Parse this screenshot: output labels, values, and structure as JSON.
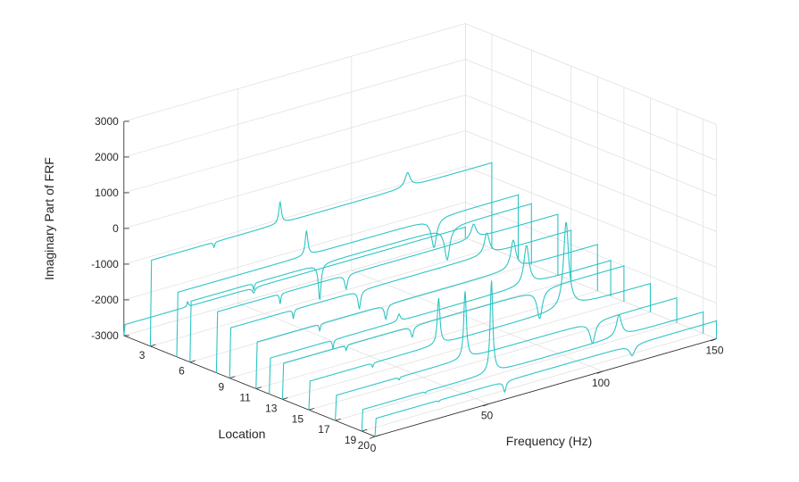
{
  "chart_data": {
    "type": "waterfall-3d-line",
    "title": "",
    "xlabel": "Frequency (Hz)",
    "ylabel": "Location",
    "zlabel": "Imaginary Part of FRF",
    "x_ticks": [
      "0",
      "50",
      "100",
      "150"
    ],
    "y_ticks": [
      "3",
      "6",
      "9",
      "11",
      "13",
      "15",
      "17",
      "19",
      "20"
    ],
    "z_ticks": [
      "3000",
      "2000",
      "1000",
      "0",
      "-1000",
      "-2000",
      "-3000"
    ],
    "xlim": [
      0,
      150
    ],
    "ylim": [
      1,
      20
    ],
    "zlim": [
      -3000,
      3000
    ],
    "grid": true,
    "line_color": "#2ec4c4",
    "peak_color": "#f2e33a",
    "modes_hz": [
      28,
      57,
      113
    ],
    "series": [
      {
        "location": 1,
        "baseline": -2700,
        "amplitudes": [
          150,
          -150,
          0
        ]
      },
      {
        "location": 3,
        "baseline": -600,
        "amplitudes": [
          -150,
          600,
          400
        ]
      },
      {
        "location": 5,
        "baseline": -1200,
        "amplitudes": [
          0,
          700,
          -800
        ]
      },
      {
        "location": 6,
        "baseline": -1300,
        "amplitudes": [
          -200,
          -1000,
          -900
        ]
      },
      {
        "location": 8,
        "baseline": -1300,
        "amplitudes": [
          -300,
          -400,
          400
        ]
      },
      {
        "location": 9,
        "baseline": -1600,
        "amplitudes": [
          -250,
          -500,
          600
        ]
      },
      {
        "location": 11,
        "baseline": -1700,
        "amplitudes": [
          -200,
          -400,
          800
        ]
      },
      {
        "location": 12,
        "baseline": -2000,
        "amplitudes": [
          -250,
          200,
          1100
        ]
      },
      {
        "location": 13,
        "baseline": -2000,
        "amplitudes": [
          -150,
          -300,
          -800
        ]
      },
      {
        "location": 15,
        "baseline": -2200,
        "amplitudes": [
          -120,
          1300,
          2400
        ]
      },
      {
        "location": 17,
        "baseline": -2300,
        "amplitudes": [
          -80,
          1900,
          -600
        ]
      },
      {
        "location": 19,
        "baseline": -2400,
        "amplitudes": [
          -50,
          2600,
          600
        ]
      },
      {
        "location": 20,
        "baseline": -2500,
        "amplitudes": [
          -40,
          -300,
          -300
        ]
      }
    ]
  }
}
